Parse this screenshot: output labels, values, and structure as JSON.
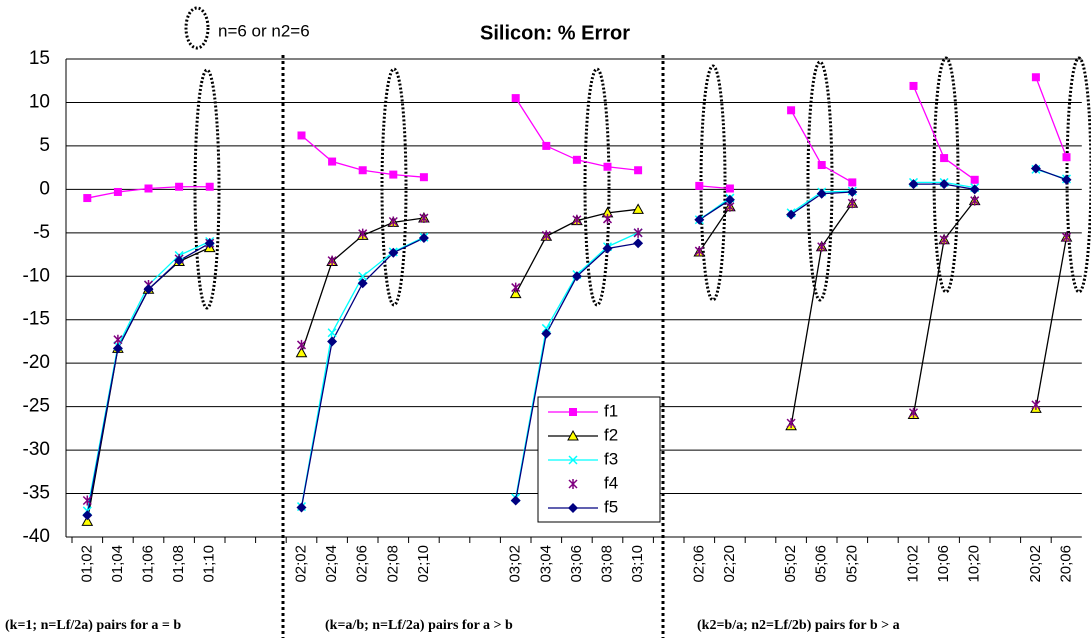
{
  "chart_data": {
    "type": "line",
    "title": "Silicon: % Error",
    "annotation": "n=6 or n2=6",
    "group_labels": [
      "(k=1; n=Lf/2a) pairs for a = b",
      "(k=a/b; n=Lf/2a) pairs for a > b",
      "(k2=b/a; n2=Lf/2b) pairs for b > a"
    ],
    "categories": [
      "01;02",
      "01;04",
      "01;06",
      "01;08",
      "01;10",
      null,
      null,
      "02;02",
      "02;04",
      "02;06",
      "02;08",
      "02;10",
      null,
      null,
      "03;02",
      "03;04",
      "03;06",
      "03;08",
      "03;10",
      null,
      "02;06",
      "02;20",
      null,
      "05;02",
      "05;06",
      "05;20",
      null,
      "10;02",
      "10;06",
      "10;20",
      null,
      "20;02",
      "20;06"
    ],
    "series": [
      {
        "name": "f1",
        "color": "#ff00ff",
        "marker": "square",
        "line": true,
        "values": [
          -1,
          -0.3,
          0.1,
          0.3,
          0.3,
          null,
          null,
          6.2,
          3.2,
          2.2,
          1.7,
          1.4,
          null,
          null,
          10.5,
          5,
          3.4,
          2.6,
          2.2,
          null,
          0.4,
          0.1,
          null,
          9.1,
          2.8,
          0.8,
          null,
          11.9,
          3.6,
          1.1,
          null,
          12.9,
          3.7
        ]
      },
      {
        "name": "f2",
        "color": "#ffff00",
        "marker": "triangle",
        "line": true,
        "values": [
          -38.2,
          -18.3,
          -11.5,
          -8.3,
          -6.7,
          null,
          null,
          -18.8,
          -8.3,
          -5.3,
          -3.8,
          -3.3,
          null,
          null,
          -12,
          -5.4,
          -3.6,
          -2.7,
          -2.3,
          null,
          -7.2,
          -2,
          null,
          -27.2,
          -6.6,
          -1.6,
          null,
          -25.9,
          -5.8,
          -1.3,
          null,
          -25.2,
          -5.5
        ]
      },
      {
        "name": "f3",
        "color": "#00ffff",
        "marker": "x",
        "line": true,
        "values": [
          -37,
          -18,
          -11,
          -7.6,
          -6,
          null,
          null,
          -36.5,
          -16.5,
          -10,
          -7.2,
          -5.5,
          null,
          null,
          -35.5,
          -16,
          -9.8,
          -6.6,
          -5,
          null,
          -3.5,
          -1,
          null,
          -2.7,
          -0.3,
          -0.2,
          null,
          0.8,
          0.8,
          0.2,
          null,
          2.3,
          1.2
        ]
      },
      {
        "name": "f4",
        "color": "#800080",
        "marker": "star",
        "line": false,
        "values": [
          -35.8,
          -17.3,
          -11,
          -8,
          -6.2,
          null,
          null,
          -17.9,
          -8.2,
          -5.1,
          -3.7,
          -3.3,
          null,
          null,
          -11.3,
          -5.3,
          -3.5,
          -3.4,
          -5,
          null,
          -7.1,
          -2,
          null,
          -26.9,
          -6.6,
          -1.6,
          null,
          -25.7,
          -5.8,
          -1.3,
          null,
          -24.8,
          -5.5
        ]
      },
      {
        "name": "f5",
        "color": "#000080",
        "marker": "diamond",
        "line": true,
        "values": [
          -37.5,
          -18.3,
          -11.5,
          -8.2,
          -6.2,
          null,
          null,
          -36.6,
          -17.5,
          -10.8,
          -7.3,
          -5.6,
          null,
          null,
          -35.8,
          -16.6,
          -10,
          -6.8,
          -6.2,
          null,
          -3.5,
          -1.2,
          null,
          -2.9,
          -0.5,
          -0.3,
          null,
          0.6,
          0.6,
          0,
          null,
          2.4,
          1.1
        ]
      }
    ],
    "ylim": [
      -40,
      15
    ],
    "yticks": [
      15,
      10,
      5,
      0,
      -5,
      -10,
      -15,
      -20,
      -25,
      -30,
      -35,
      -40
    ],
    "grid": true,
    "legend": "lower-center"
  }
}
